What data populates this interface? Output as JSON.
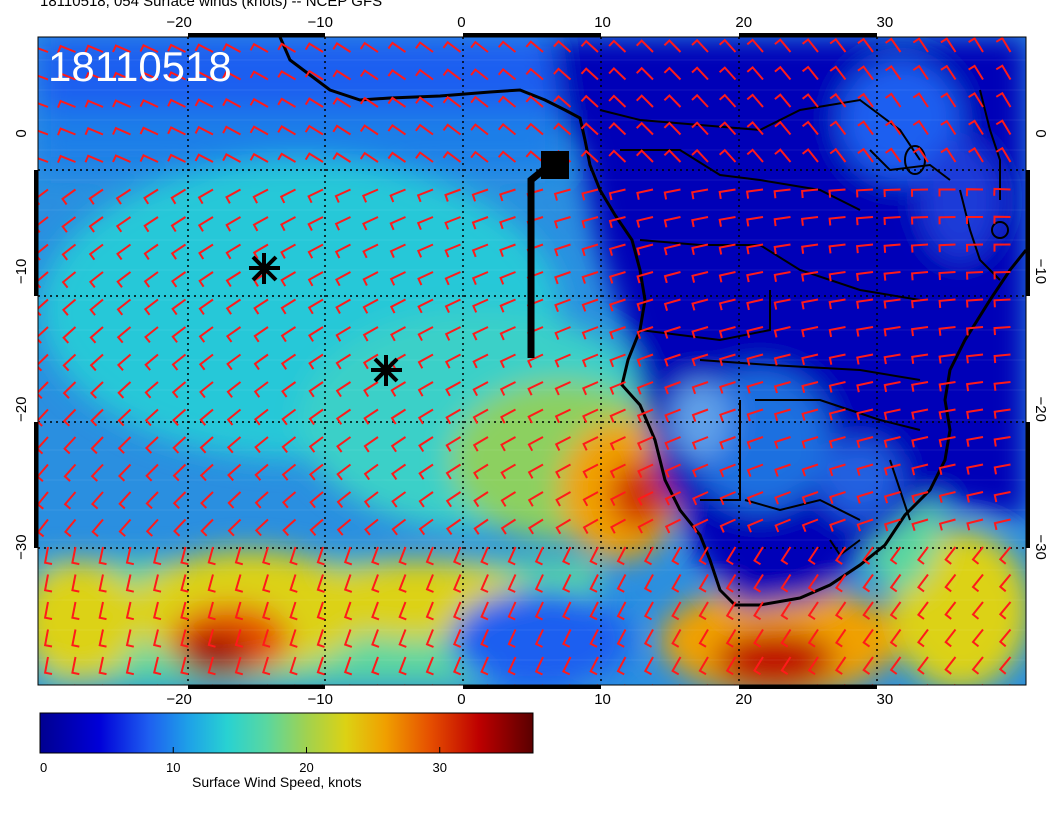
{
  "title": "18110518, 054 Surface winds (knots) -- NCEP GFS",
  "inset_label": "18110518",
  "map": {
    "projection": "cylindrical",
    "lon_range": [
      -30,
      40
    ],
    "lat_range": [
      -40,
      7
    ],
    "grid_lines": "dotted",
    "lon_ticks": [
      -20,
      -10,
      0,
      10,
      20,
      30
    ],
    "lat_ticks": [
      0,
      -10,
      -20,
      -30
    ],
    "field": "Surface wind speed, knots",
    "land_outline_color": "#000000",
    "wind_barb_color": "#ff1a1a",
    "markers": [
      {
        "name": "asterisk-marker",
        "lon": -14.5,
        "lat": -8.5
      },
      {
        "name": "asterisk-marker",
        "lon": -5.7,
        "lat": -16.2
      }
    ],
    "track": {
      "name": "black-track-marker",
      "points": [
        [
          5.0,
          -15.0
        ],
        [
          5.0,
          0.0
        ],
        [
          6.6,
          0.7
        ]
      ]
    }
  },
  "colorbar": {
    "label": "Surface Wind Speed, knots",
    "range": [
      0,
      37
    ],
    "ticks": [
      "0",
      "10",
      "20",
      "30"
    ],
    "tick_values": [
      0,
      10,
      20,
      30
    ],
    "colors": [
      "#000090",
      "#0000d8",
      "#1e5ef0",
      "#1ea0e8",
      "#28d2d2",
      "#5ad7a0",
      "#a0d250",
      "#dcd214",
      "#f0a000",
      "#e65000",
      "#be0000",
      "#5a0000"
    ]
  }
}
